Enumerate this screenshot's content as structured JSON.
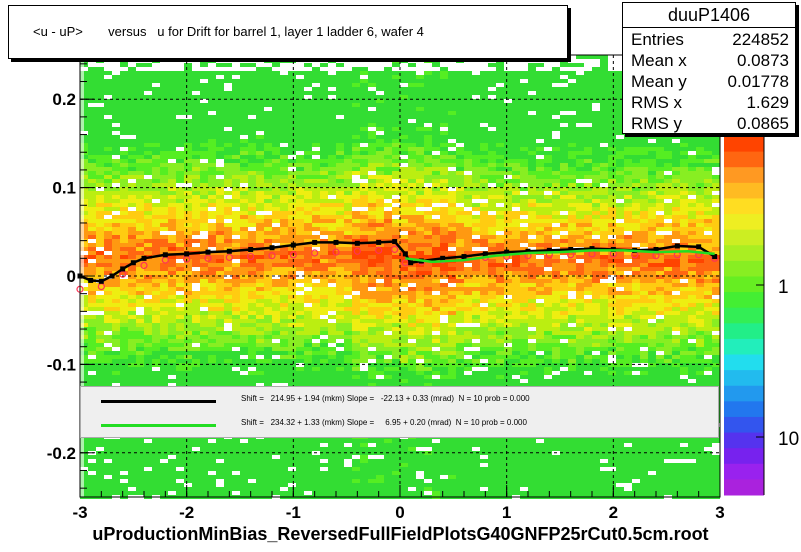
{
  "title": "<u - uP>       versus   u for Drift for barrel 1, layer 1 ladder 6, wafer 4",
  "stats": {
    "name": "duuP1406",
    "rows": [
      {
        "label": "Entries",
        "value": "224852"
      },
      {
        "label": "Mean x",
        "value": "0.0873"
      },
      {
        "label": "Mean y",
        "value": "0.01778"
      },
      {
        "label": "RMS x",
        "value": "1.629"
      },
      {
        "label": "RMS y",
        "value": "0.0865"
      }
    ]
  },
  "footer": "uProductionMinBias_ReversedFullFieldPlotsG40GNFP25rCut0.5cm.root",
  "fits": [
    {
      "color": "#000000",
      "text": "Shift =   214.95 + 1.94 (mkm) Slope =   -22.13 + 0.33 (mrad)  N = 10 prob = 0.000"
    },
    {
      "color": "#22dd22",
      "text": "Shift =   234.32 + 1.33 (mkm) Slope =     6.95 + 0.20 (mrad)  N = 10 prob = 0.000"
    }
  ],
  "colors": {
    "profile_black": "#000000",
    "profile_red": "#ff3355",
    "fit_green": "#22dd22",
    "hist_low": "#33cc33",
    "hist_high": "#ff4400"
  },
  "chart_data": {
    "type": "heatmap",
    "xlim": [
      -3,
      3
    ],
    "ylim": [
      -0.25,
      0.25
    ],
    "x_ticks": [
      "-3",
      "-2",
      "-1",
      "0",
      "1",
      "2",
      "3"
    ],
    "y_ticks": [
      "-0.2",
      "-0.1",
      "0",
      "0.1",
      "0.2"
    ],
    "z_scale": "log",
    "z_ticks": [
      "1",
      "10"
    ],
    "grid": true,
    "series": [
      {
        "values": [
          [
            -3.0,
            0.0
          ],
          [
            -2.9,
            -0.005
          ],
          [
            -2.8,
            -0.006
          ],
          [
            -2.7,
            0.0
          ],
          [
            -2.6,
            0.008
          ],
          [
            -2.5,
            0.015
          ],
          [
            -2.4,
            0.02
          ],
          [
            -2.2,
            0.024
          ],
          [
            -2.0,
            0.025
          ],
          [
            -1.8,
            0.027
          ],
          [
            -1.6,
            0.028
          ],
          [
            -1.4,
            0.03
          ],
          [
            -1.2,
            0.032
          ],
          [
            -1.0,
            0.035
          ],
          [
            -0.8,
            0.038
          ],
          [
            -0.6,
            0.038
          ],
          [
            -0.4,
            0.037
          ],
          [
            -0.2,
            0.038
          ],
          [
            -0.05,
            0.039
          ],
          [
            0.05,
            0.025
          ],
          [
            0.1,
            0.015
          ],
          [
            0.2,
            0.017
          ],
          [
            0.4,
            0.02
          ],
          [
            0.6,
            0.022
          ],
          [
            0.8,
            0.025
          ],
          [
            1.0,
            0.027
          ],
          [
            1.2,
            0.028
          ],
          [
            1.4,
            0.029
          ],
          [
            1.6,
            0.03
          ],
          [
            1.8,
            0.031
          ],
          [
            2.0,
            0.03
          ],
          [
            2.2,
            0.029
          ],
          [
            2.4,
            0.03
          ],
          [
            2.6,
            0.034
          ],
          [
            2.8,
            0.033
          ],
          [
            2.95,
            0.022
          ]
        ]
      },
      {
        "values": [
          [
            -3.0,
            -0.015
          ],
          [
            -2.8,
            -0.012
          ],
          [
            -2.6,
            0.002
          ],
          [
            -2.4,
            0.012
          ],
          [
            -2.2,
            0.018
          ],
          [
            -2.0,
            0.019
          ],
          [
            -1.8,
            0.02
          ],
          [
            -1.6,
            0.021
          ],
          [
            -1.4,
            0.022
          ],
          [
            -1.2,
            0.023
          ],
          [
            -1.0,
            0.024
          ],
          [
            -0.8,
            0.026
          ],
          [
            -0.6,
            0.027
          ],
          [
            -0.4,
            0.028
          ],
          [
            -0.2,
            0.029
          ],
          [
            -0.05,
            0.03
          ],
          [
            0.05,
            0.015
          ],
          [
            0.2,
            0.016
          ],
          [
            0.4,
            0.018
          ],
          [
            0.6,
            0.02
          ],
          [
            0.8,
            0.021
          ],
          [
            1.0,
            0.022
          ],
          [
            1.2,
            0.023
          ],
          [
            1.4,
            0.024
          ],
          [
            1.6,
            0.024
          ],
          [
            1.8,
            0.025
          ],
          [
            2.0,
            0.025
          ],
          [
            2.2,
            0.024
          ],
          [
            2.4,
            0.023
          ],
          [
            2.6,
            0.024
          ],
          [
            2.8,
            0.024
          ],
          [
            2.95,
            0.02
          ]
        ]
      },
      {
        "values": [
          [
            0.05,
            0.02
          ],
          [
            0.3,
            0.016
          ],
          [
            0.6,
            0.018
          ],
          [
            0.9,
            0.023
          ],
          [
            1.2,
            0.026
          ],
          [
            1.5,
            0.027
          ],
          [
            1.8,
            0.029
          ],
          [
            2.1,
            0.029
          ],
          [
            2.4,
            0.027
          ],
          [
            2.7,
            0.028
          ],
          [
            2.95,
            0.025
          ]
        ]
      }
    ]
  }
}
